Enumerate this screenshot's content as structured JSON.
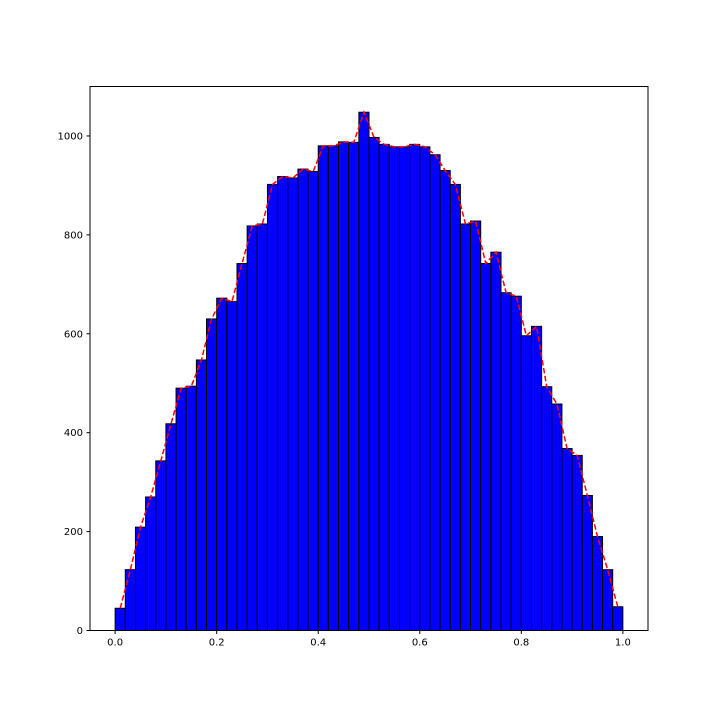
{
  "chart_data": {
    "type": "bar",
    "subtype": "histogram",
    "bin_width": 0.02,
    "bin_starts": [
      0.0,
      0.02,
      0.04,
      0.06,
      0.08,
      0.1,
      0.12,
      0.14,
      0.16,
      0.18,
      0.2,
      0.22,
      0.24,
      0.26,
      0.28,
      0.3,
      0.32,
      0.34,
      0.36,
      0.38,
      0.4,
      0.42,
      0.44,
      0.46,
      0.48,
      0.5,
      0.52,
      0.54,
      0.56,
      0.58,
      0.6,
      0.62,
      0.64,
      0.66,
      0.68,
      0.7,
      0.72,
      0.74,
      0.76,
      0.78,
      0.8,
      0.82,
      0.84,
      0.86,
      0.88,
      0.9,
      0.92,
      0.94,
      0.96,
      0.98
    ],
    "values": [
      45,
      123,
      209,
      270,
      343,
      418,
      490,
      494,
      547,
      630,
      672,
      665,
      742,
      818,
      822,
      902,
      918,
      915,
      933,
      928,
      980,
      980,
      988,
      987,
      1048,
      997,
      983,
      978,
      978,
      983,
      978,
      962,
      930,
      902,
      822,
      828,
      742,
      765,
      683,
      676,
      596,
      615,
      493,
      458,
      368,
      354,
      273,
      190,
      123,
      48
    ],
    "overlay_line": {
      "style": "dashed",
      "color": "#ff0000",
      "follows": "bin_heights"
    },
    "xlim": [
      -0.0495,
      1.0495
    ],
    "ylim": [
      0,
      1100
    ],
    "xticks": [
      0.0,
      0.2,
      0.4,
      0.6,
      0.8,
      1.0
    ],
    "xtick_labels": [
      "0.0",
      "0.2",
      "0.4",
      "0.6",
      "0.8",
      "1.0"
    ],
    "yticks": [
      0,
      200,
      400,
      600,
      800,
      1000
    ],
    "ytick_labels": [
      "0",
      "200",
      "400",
      "600",
      "800",
      "1000"
    ],
    "bar_color": "#0000ff",
    "edge_color": "#000000",
    "title": "",
    "xlabel": "",
    "ylabel": "",
    "grid": false
  }
}
